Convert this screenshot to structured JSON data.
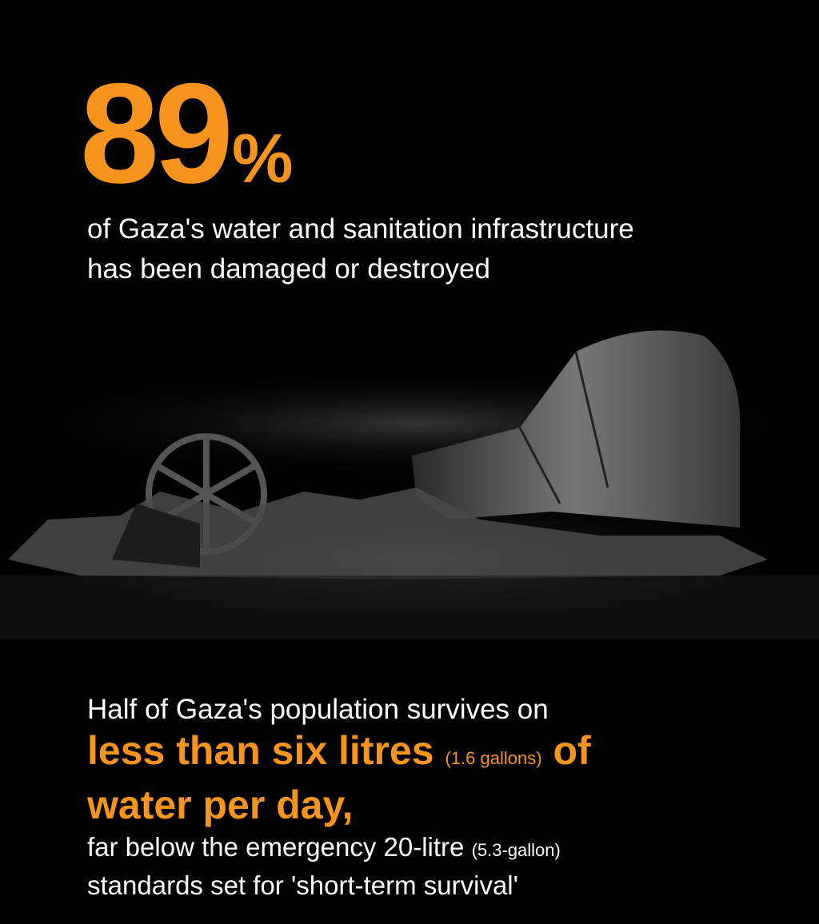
{
  "headline": {
    "value": "89",
    "unit": "%"
  },
  "description": "of Gaza's water and sanitation infrastructure has been damaged or destroyed",
  "illustration": {
    "subject": "broken-water-pipe-and-valve-in-rubble"
  },
  "bottom": {
    "intro": "Half of Gaza's population survives on",
    "highlight_part1": "less than six litres",
    "highlight_aside": "(1.6 gallons)",
    "highlight_part2": "of",
    "highlight_line2": "water per day,",
    "comparison_part1": "far below the emergency 20-litre",
    "comparison_aside": "(5.3-gallon)",
    "comparison_line2": "standards set for 'short-term survival'"
  },
  "colors": {
    "accent": "#f7941d",
    "background": "#000000",
    "text": "#ffffff"
  }
}
